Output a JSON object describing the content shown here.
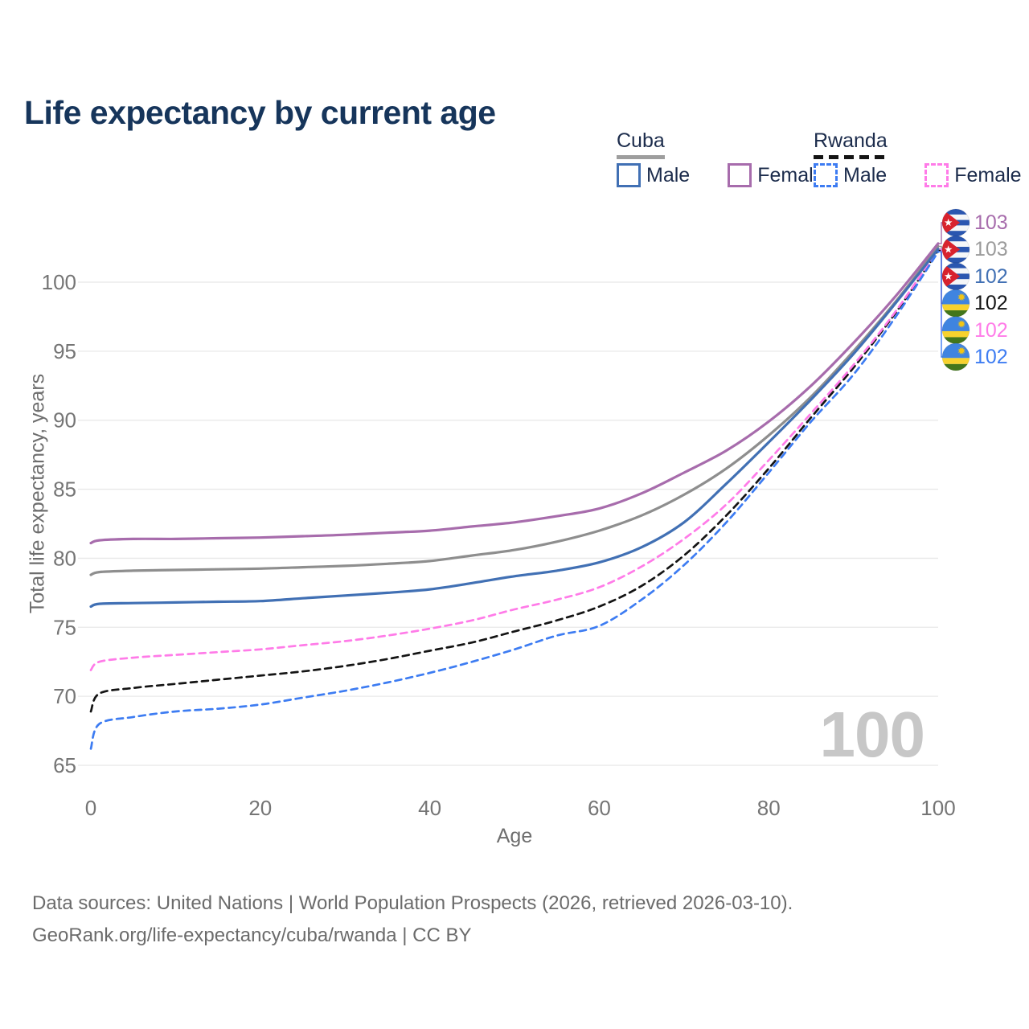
{
  "title": "Life expectancy by current age",
  "legend": {
    "cuba": {
      "title": "Cuba",
      "male_label": "Male",
      "female_label": "Female"
    },
    "rwanda": {
      "title": "Rwanda",
      "male_label": "Male",
      "female_label": "Female"
    }
  },
  "y_axis": {
    "title": "Total life expectancy, years",
    "ticks": [
      65,
      70,
      75,
      80,
      85,
      90,
      95,
      100
    ]
  },
  "x_axis": {
    "title": "Age",
    "ticks": [
      0,
      20,
      40,
      60,
      80,
      100
    ]
  },
  "watermark": "100",
  "end_labels": [
    {
      "value": "103",
      "flag": "cuba",
      "series": "Cuba Female",
      "color": "#A76CAC"
    },
    {
      "value": "103",
      "flag": "cuba",
      "series": "Cuba Both sexes",
      "color": "#9B9B9B"
    },
    {
      "value": "102",
      "flag": "cuba",
      "series": "Cuba Male",
      "color": "#4170B4"
    },
    {
      "value": "102",
      "flag": "rwanda",
      "series": "Rwanda Both sexes",
      "color": "#141414"
    },
    {
      "value": "102",
      "flag": "rwanda",
      "series": "Rwanda Female",
      "color": "#FF7BE8"
    },
    {
      "value": "102",
      "flag": "rwanda",
      "series": "Rwanda Male",
      "color": "#3D7CF2"
    }
  ],
  "footer": {
    "line1": "Data sources: United Nations | World Population Prospects (2026, retrieved 2026-03-10).",
    "line2": "GeoRank.org/life-expectancy/cuba/rwanda | CC BY"
  },
  "colors": {
    "title_text": "#16355B",
    "axis_text": "#757575",
    "gridline": "#E8E8E8",
    "watermark": "#C7C7C7",
    "cuba_flag_blue": "#2A56B0",
    "cuba_flag_red": "#D8222E",
    "rwanda_flag_blue": "#3F84E0",
    "rwanda_flag_yellow": "#F7D22E",
    "rwanda_flag_green": "#42761C",
    "rwanda_flag_sun": "#F2C514"
  },
  "chart_data": {
    "type": "line",
    "title": "Life expectancy by current age",
    "xlabel": "Age",
    "ylabel": "Total life expectancy, years",
    "xlim": [
      0,
      100
    ],
    "ylim": [
      63.5,
      104.5
    ],
    "grid": "horizontal",
    "legend_position": "top-right",
    "x": [
      0,
      1,
      5,
      10,
      15,
      20,
      25,
      30,
      35,
      40,
      45,
      50,
      55,
      60,
      65,
      70,
      75,
      80,
      85,
      90,
      95,
      100
    ],
    "series": [
      {
        "name": "Cuba Female",
        "country": "Cuba",
        "sex": "Female",
        "color": "#A76CAC",
        "dash": null,
        "end_label": "103",
        "values": [
          81.1,
          81.3,
          81.4,
          81.4,
          81.45,
          81.5,
          81.6,
          81.7,
          81.85,
          82.0,
          82.3,
          82.6,
          83.05,
          83.6,
          84.7,
          86.2,
          87.8,
          89.9,
          92.5,
          95.6,
          99.0,
          102.8
        ]
      },
      {
        "name": "Cuba Both sexes",
        "country": "Cuba",
        "sex": "Both",
        "color": "#8E8E8E",
        "dash": null,
        "end_label": "103",
        "values": [
          78.8,
          79.0,
          79.1,
          79.15,
          79.2,
          79.25,
          79.35,
          79.45,
          79.6,
          79.8,
          80.2,
          80.6,
          81.2,
          82.0,
          83.1,
          84.6,
          86.5,
          88.9,
          91.7,
          95.0,
          98.6,
          102.6
        ]
      },
      {
        "name": "Cuba Male",
        "country": "Cuba",
        "sex": "Male",
        "color": "#4170B4",
        "dash": null,
        "end_label": "102",
        "values": [
          76.5,
          76.7,
          76.75,
          76.8,
          76.85,
          76.9,
          77.1,
          77.3,
          77.5,
          77.75,
          78.2,
          78.7,
          79.1,
          79.7,
          80.8,
          82.6,
          85.4,
          88.4,
          91.5,
          94.8,
          98.5,
          102.4
        ]
      },
      {
        "name": "Rwanda Both sexes",
        "country": "Rwanda",
        "sex": "Both",
        "color": "#141414",
        "dash": [
          8,
          6
        ],
        "end_label": "102",
        "values": [
          68.9,
          70.2,
          70.6,
          70.9,
          71.2,
          71.5,
          71.8,
          72.2,
          72.7,
          73.3,
          73.9,
          74.7,
          75.5,
          76.5,
          78.0,
          80.2,
          83.1,
          86.5,
          90.2,
          93.8,
          97.8,
          102.3
        ]
      },
      {
        "name": "Rwanda Female",
        "country": "Rwanda",
        "sex": "Female",
        "color": "#FF7BE8",
        "dash": [
          8,
          6
        ],
        "end_label": "102",
        "values": [
          71.9,
          72.5,
          72.8,
          73.0,
          73.2,
          73.4,
          73.7,
          74.0,
          74.4,
          74.9,
          75.5,
          76.3,
          77.0,
          77.9,
          79.4,
          81.4,
          83.9,
          87.1,
          90.5,
          94.0,
          97.9,
          102.4
        ]
      },
      {
        "name": "Rwanda Male",
        "country": "Rwanda",
        "sex": "Male",
        "color": "#3D7CF2",
        "dash": [
          8,
          6
        ],
        "end_label": "102",
        "values": [
          66.2,
          68.0,
          68.5,
          68.9,
          69.1,
          69.4,
          69.9,
          70.4,
          71.0,
          71.7,
          72.5,
          73.4,
          74.4,
          75.1,
          77.0,
          79.5,
          82.6,
          86.2,
          89.9,
          93.3,
          97.5,
          102.2
        ]
      }
    ]
  }
}
